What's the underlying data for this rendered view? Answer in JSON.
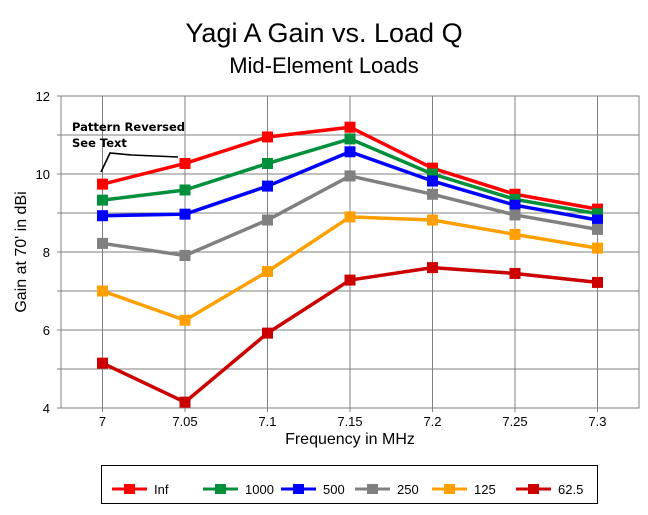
{
  "chart_data": {
    "type": "line",
    "title": "Yagi A Gain vs. Load Q",
    "subtitle": "Mid-Element Loads",
    "xlabel": "Frequency in MHz",
    "ylabel": "Gain at 70' in dBi",
    "x": [
      7,
      7.05,
      7.1,
      7.15,
      7.2,
      7.25,
      7.3
    ],
    "x_tick_labels": [
      "7",
      "7.05",
      "7.1",
      "7.15",
      "7.2",
      "7.25",
      "7.3"
    ],
    "ylim": [
      4,
      12
    ],
    "y_ticks": [
      4,
      6,
      8,
      10,
      12
    ],
    "y_tick_labels": [
      "4",
      "6",
      "8",
      "10",
      "12"
    ],
    "grid": true,
    "legend_position": "bottom",
    "annotation": {
      "lines": [
        "Pattern Reversed",
        "See Text"
      ],
      "points_to": {
        "x": 7,
        "y": 9.75
      }
    },
    "series": [
      {
        "name": "Inf",
        "color": "#ff0000",
        "values": [
          9.74,
          10.27,
          10.95,
          11.2,
          10.15,
          9.48,
          9.1
        ]
      },
      {
        "name": "1000",
        "color": "#008f3a",
        "values": [
          9.33,
          9.59,
          10.27,
          10.9,
          10.0,
          9.35,
          8.98
        ]
      },
      {
        "name": "500",
        "color": "#0000ff",
        "values": [
          8.93,
          8.97,
          9.69,
          10.57,
          9.82,
          9.2,
          8.82
        ]
      },
      {
        "name": "250",
        "color": "#808080",
        "values": [
          8.22,
          7.91,
          8.82,
          9.95,
          9.48,
          8.95,
          8.58
        ]
      },
      {
        "name": "125",
        "color": "#ffa000",
        "values": [
          7.0,
          6.25,
          7.5,
          8.9,
          8.82,
          8.45,
          8.1
        ]
      },
      {
        "name": "62.5",
        "color": "#cc0000",
        "values": [
          5.15,
          4.15,
          5.92,
          7.28,
          7.6,
          7.45,
          7.22
        ]
      }
    ]
  }
}
